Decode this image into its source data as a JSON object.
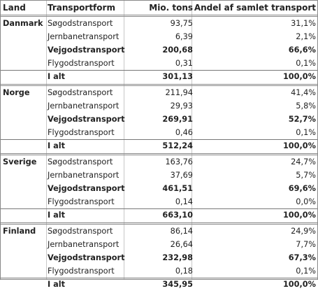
{
  "header": {
    "land": "Land",
    "form": "Transportform",
    "tons": "Mio. tons",
    "share": "Andel af samlet transport"
  },
  "countries": [
    {
      "name": "Danmark",
      "rows": [
        {
          "form": "Søgodstransport",
          "tons": "93,75",
          "share": "31,1%",
          "bold": false
        },
        {
          "form": "Jernbanetransport",
          "tons": "6,39",
          "share": "2,1%",
          "bold": false
        },
        {
          "form": "Vejgodstransport",
          "tons": "200,68",
          "share": "66,6%",
          "bold": true
        },
        {
          "form": "Flygodstransport",
          "tons": "0,31",
          "share": "0,1%",
          "bold": false
        }
      ],
      "total": {
        "label": "I alt",
        "tons": "301,13",
        "share": "100,0%"
      }
    },
    {
      "name": "Norge",
      "rows": [
        {
          "form": "Søgodstransport",
          "tons": "211,94",
          "share": "41,4%",
          "bold": false
        },
        {
          "form": "Jernbanetransport",
          "tons": "29,93",
          "share": "5,8%",
          "bold": false
        },
        {
          "form": "Vejgodstransport",
          "tons": "269,91",
          "share": "52,7%",
          "bold": true
        },
        {
          "form": "Flygodstransport",
          "tons": "0,46",
          "share": "0,1%",
          "bold": false
        }
      ],
      "total": {
        "label": "I alt",
        "tons": "512,24",
        "share": "100,0%"
      }
    },
    {
      "name": "Sverige",
      "rows": [
        {
          "form": "Søgodstransport",
          "tons": "163,76",
          "share": "24,7%",
          "bold": false
        },
        {
          "form": "Jernbanetransport",
          "tons": "37,69",
          "share": "5,7%",
          "bold": false
        },
        {
          "form": "Vejgodstransport",
          "tons": "461,51",
          "share": "69,6%",
          "bold": true
        },
        {
          "form": "Flygodstransport",
          "tons": "0,14",
          "share": "0,0%",
          "bold": false
        }
      ],
      "total": {
        "label": "I alt",
        "tons": "663,10",
        "share": "100,0%"
      }
    },
    {
      "name": "Finland",
      "rows": [
        {
          "form": "Søgodstransport",
          "tons": "86,14",
          "share": "24,9%",
          "bold": false
        },
        {
          "form": "Jernbanetransport",
          "tons": "26,64",
          "share": "7,7%",
          "bold": false
        },
        {
          "form": "Vejgodstransport",
          "tons": "232,98",
          "share": "67,3%",
          "bold": true
        },
        {
          "form": "Flygodstransport",
          "tons": "0,18",
          "share": "0,1%",
          "bold": false
        }
      ],
      "total": {
        "label": "I alt",
        "tons": "345,95",
        "share": "100,0%"
      }
    }
  ]
}
